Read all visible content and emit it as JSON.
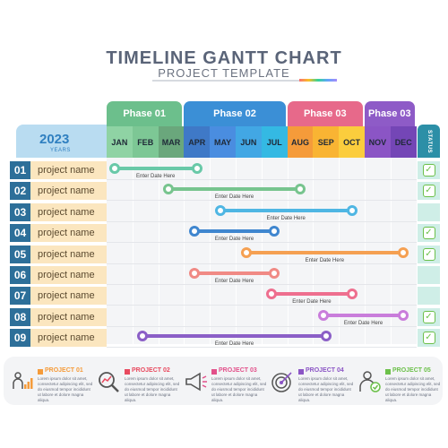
{
  "header": {
    "title": "TIMELINE GANTT CHART",
    "subtitle": "PROJECT TEMPLATE"
  },
  "year": {
    "value": "2023",
    "label": "YEARS"
  },
  "status_label": "STATUS",
  "phases": [
    {
      "label": "Phase 01",
      "color": "#6cbf8c"
    },
    {
      "label": "Phase 02",
      "color": "#3b8fd6"
    },
    {
      "label": "Phase 03",
      "color": "#e7698a"
    },
    {
      "label": "Phase 03",
      "color": "#8e5bc7"
    }
  ],
  "months": [
    {
      "label": "JAN",
      "color": "#8fd3a4"
    },
    {
      "label": "FEB",
      "color": "#7dc795"
    },
    {
      "label": "MAR",
      "color": "#6aa77c"
    },
    {
      "label": "APR",
      "color": "#3f79c7"
    },
    {
      "label": "MAY",
      "color": "#4a8de0"
    },
    {
      "label": "JUN",
      "color": "#42a7e4"
    },
    {
      "label": "JUL",
      "color": "#34b9e3"
    },
    {
      "label": "AUG",
      "color": "#f59b3a"
    },
    {
      "label": "SEP",
      "color": "#f9b433"
    },
    {
      "label": "OCT",
      "color": "#fbcd3d"
    },
    {
      "label": "NOV",
      "color": "#8b55c5"
    },
    {
      "label": "DEC",
      "color": "#7446b6"
    }
  ],
  "rows": [
    {
      "num": "01",
      "name": "project name",
      "start": 0.3,
      "end": 3.5,
      "color": "#69c9a8",
      "label": "Enter Date Here",
      "done": true
    },
    {
      "num": "02",
      "name": "project name",
      "start": 2.4,
      "end": 7.5,
      "color": "#77c48e",
      "label": "Enter Date Here",
      "done": true
    },
    {
      "num": "03",
      "name": "project name",
      "start": 4.4,
      "end": 9.5,
      "color": "#4fb6e3",
      "label": "Enter Date Here",
      "done": false
    },
    {
      "num": "04",
      "name": "project name",
      "start": 3.4,
      "end": 6.5,
      "color": "#3f86cf",
      "label": "Enter Date Here",
      "done": true
    },
    {
      "num": "05",
      "name": "project name",
      "start": 5.4,
      "end": 11.5,
      "color": "#f5a052",
      "label": "Enter Date Here",
      "done": true
    },
    {
      "num": "06",
      "name": "project name",
      "start": 3.4,
      "end": 6.5,
      "color": "#f08a85",
      "label": "Enter Date Here",
      "done": false
    },
    {
      "num": "07",
      "name": "project name",
      "start": 6.4,
      "end": 9.5,
      "color": "#ee6f8f",
      "label": "Enter Date Here",
      "done": false
    },
    {
      "num": "08",
      "name": "project name",
      "start": 8.4,
      "end": 11.5,
      "color": "#c97ddb",
      "label": "Enter Date Here",
      "done": true
    },
    {
      "num": "09",
      "name": "project name",
      "start": 1.4,
      "end": 8.5,
      "color": "#8b5fc7",
      "label": "Enter Date Here",
      "done": true
    }
  ],
  "legend": [
    {
      "title": "PROJECT 01",
      "color": "#f59b3a",
      "text": "Lorem ipsum dolor sit amet, consectetur adipiscing elit, sed do eiusmod tempor incididunt ut labore et dolore magna aliqua.",
      "icon": "growth-chart-icon"
    },
    {
      "title": "PROJECT 02",
      "color": "#e84a5f",
      "text": "Lorem ipsum dolor sit amet, consectetur adipiscing elit, sed do eiusmod tempor incididunt ut labore et dolore magna aliqua.",
      "icon": "magnifier-chart-icon"
    },
    {
      "title": "PROJECT 03",
      "color": "#e2508a",
      "text": "Lorem ipsum dolor sit amet, consectetur adipiscing elit, sed do eiusmod tempor incididunt ut labore et dolore magna aliqua.",
      "icon": "megaphone-icon"
    },
    {
      "title": "PROJECT 04",
      "color": "#8b55c5",
      "text": "Lorem ipsum dolor sit amet, consectetur adipiscing elit, sed do eiusmod tempor incididunt ut labore et dolore magna aliqua.",
      "icon": "target-icon"
    },
    {
      "title": "PROJECT 05",
      "color": "#6cc04a",
      "text": "Lorem ipsum dolor sit amet, consectetur adipiscing elit, sed do eiusmod tempor incididunt ut labore et dolore magna aliqua.",
      "icon": "person-check-icon"
    }
  ]
}
